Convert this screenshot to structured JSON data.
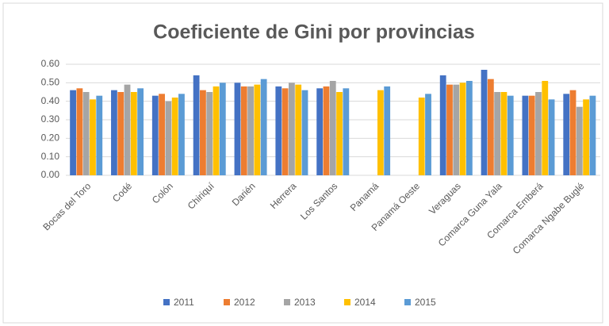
{
  "chart_data": {
    "type": "bar",
    "title": "Coeficiente de Gini por provincias",
    "categories": [
      "Bocas del Toro",
      "Codé",
      "Colón",
      "Chiriquí",
      "Darién",
      "Herrera",
      "Los Santos",
      "Panamá",
      "Panamá Oeste",
      "Veraguas",
      "Comarca Guna Yala",
      "Comarca Emberá",
      "Comarca Ngabe Buglé"
    ],
    "series": [
      {
        "name": "2011",
        "color": "#4472c4",
        "values": [
          0.46,
          0.46,
          0.43,
          0.54,
          0.5,
          0.48,
          0.47,
          null,
          null,
          0.54,
          0.57,
          0.43,
          0.44
        ]
      },
      {
        "name": "2012",
        "color": "#ed7d31",
        "values": [
          0.47,
          0.45,
          0.44,
          0.46,
          0.48,
          0.47,
          0.48,
          null,
          null,
          0.49,
          0.52,
          0.43,
          0.46
        ]
      },
      {
        "name": "2013",
        "color": "#a5a5a5",
        "values": [
          0.45,
          0.49,
          0.4,
          0.45,
          0.48,
          0.5,
          0.51,
          null,
          null,
          0.49,
          0.45,
          0.45,
          0.37
        ]
      },
      {
        "name": "2014",
        "color": "#ffc000",
        "values": [
          0.41,
          0.45,
          0.42,
          0.48,
          0.49,
          0.49,
          0.45,
          0.46,
          0.42,
          0.5,
          0.45,
          0.51,
          0.41
        ]
      },
      {
        "name": "2015",
        "color": "#5b9bd5",
        "values": [
          0.43,
          0.47,
          0.44,
          0.5,
          0.52,
          0.46,
          0.47,
          0.48,
          0.44,
          0.51,
          0.43,
          0.41,
          0.43
        ]
      }
    ],
    "ylim": [
      0,
      0.6
    ],
    "yticks": [
      {
        "value": 0,
        "label": "0.00"
      },
      {
        "value": 0.1,
        "label": "0.10"
      },
      {
        "value": 0.2,
        "label": "0.20"
      },
      {
        "value": 0.3,
        "label": "0.30"
      },
      {
        "value": 0.4,
        "label": "0.40"
      },
      {
        "value": 0.5,
        "label": "0.50"
      },
      {
        "value": 0.6,
        "label": "0.60"
      }
    ],
    "grid": true,
    "legend": "bottom"
  }
}
